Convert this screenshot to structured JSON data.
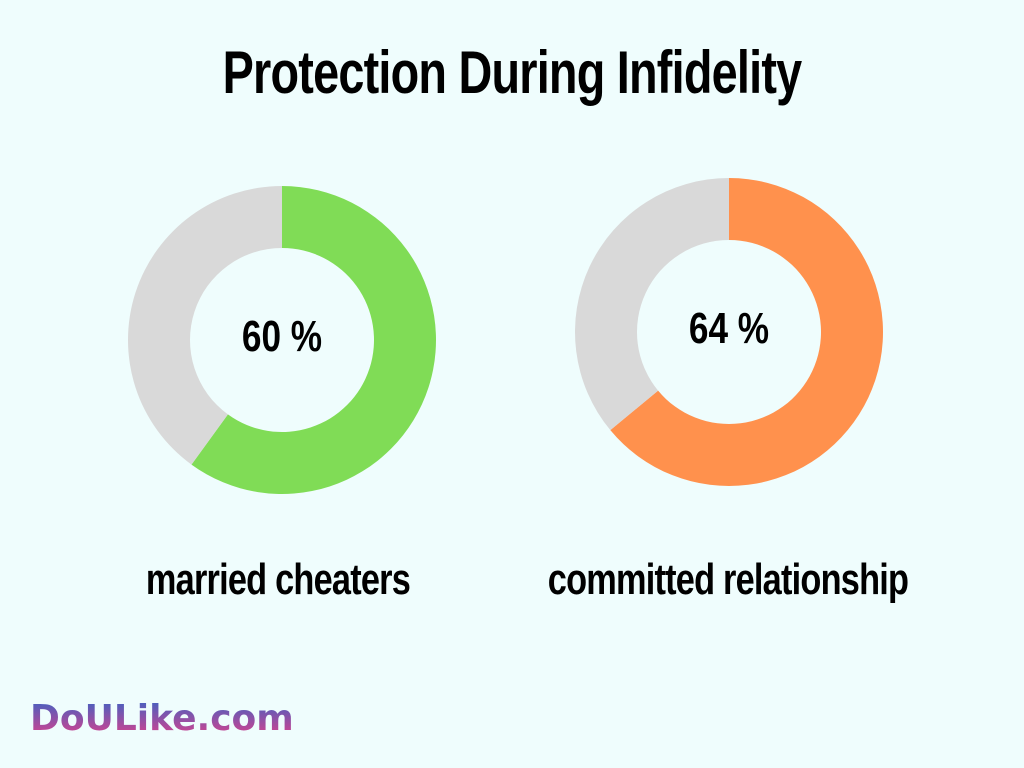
{
  "chart_data": [
    {
      "type": "pie",
      "title": "Protection During Infidelity",
      "category": "married cheaters",
      "value": 60,
      "label": "60 %",
      "color": "#80dc56",
      "rest_color": "#d9d9d9"
    },
    {
      "type": "pie",
      "title": "Protection During Infidelity",
      "category": "committed relationship",
      "value": 64,
      "label": "64 %",
      "color": "#ff914d",
      "rest_color": "#d9d9d9"
    }
  ],
  "title": "Protection During Infidelity",
  "logo": "DoULike.com"
}
